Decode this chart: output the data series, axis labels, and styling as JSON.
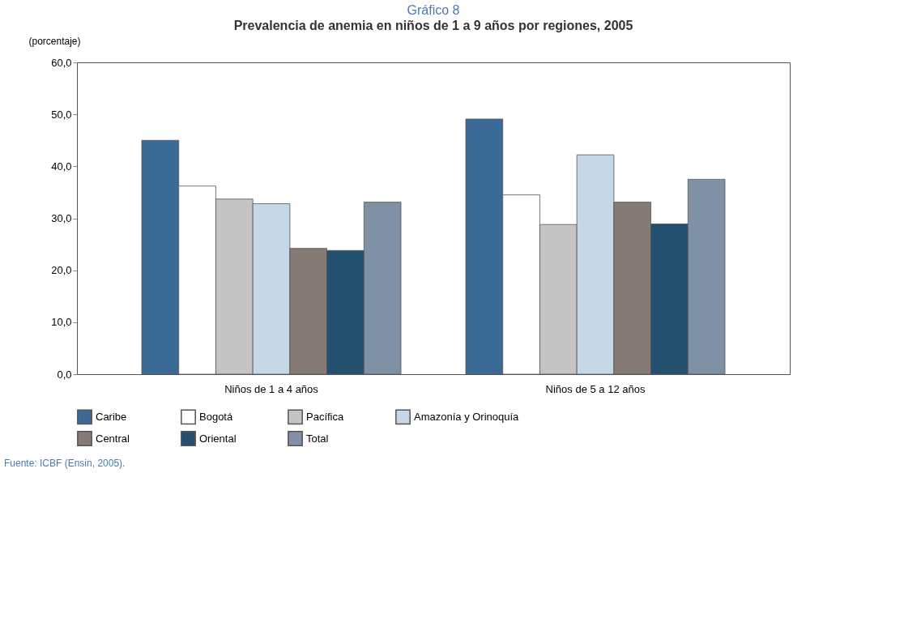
{
  "chart_data": {
    "type": "bar",
    "title": "Gráfico 8",
    "subtitle": "Prevalencia de anemia en niños de 1 a 9 años por regiones, 2005",
    "ylabel": "(porcentaje)",
    "categories": [
      "Niños de 1 a 4 años",
      "Niños de 5 a 12 años"
    ],
    "series": [
      {
        "name": "Caribe",
        "color": "#3a6a95",
        "values": [
          45.0,
          49.1
        ]
      },
      {
        "name": "Bogotá",
        "color": "#ffffff",
        "values": [
          36.2,
          34.5
        ]
      },
      {
        "name": "Pacífica",
        "color": "#c4c4c4",
        "values": [
          33.7,
          28.8
        ]
      },
      {
        "name": "Amazonía y Orinoquía",
        "color": "#c5d8e8",
        "values": [
          32.8,
          42.2
        ]
      },
      {
        "name": "Central",
        "color": "#857a74",
        "values": [
          24.2,
          33.1
        ]
      },
      {
        "name": "Oriental",
        "color": "#23506f",
        "values": [
          23.8,
          28.9
        ]
      },
      {
        "name": "Total",
        "color": "#8191a5",
        "values": [
          33.1,
          37.5
        ]
      }
    ],
    "ylim": [
      0,
      60
    ],
    "yticks": [
      {
        "value": 0,
        "label": "0,0"
      },
      {
        "value": 10,
        "label": "10,0"
      },
      {
        "value": 20,
        "label": "20,0"
      },
      {
        "value": 30,
        "label": "30,0"
      },
      {
        "value": 40,
        "label": "40,0"
      },
      {
        "value": 50,
        "label": "50,0"
      },
      {
        "value": 60,
        "label": "60,0"
      }
    ],
    "legend": "bottom",
    "annotations": [
      "Fuente: ICBF (Ensin, 2005)."
    ]
  }
}
